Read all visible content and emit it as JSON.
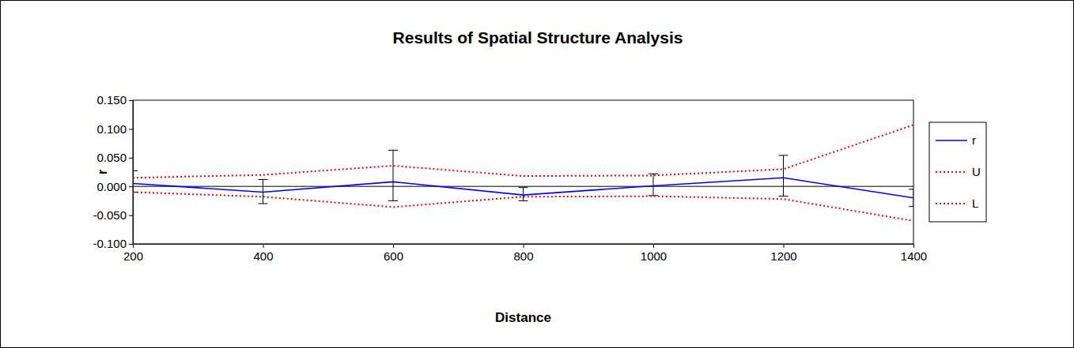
{
  "chart_data": {
    "type": "line",
    "title": "Results of Spatial Structure Analysis",
    "x_label": "Distance",
    "y_label": "r",
    "x": [
      200,
      400,
      600,
      800,
      1000,
      1200,
      1400
    ],
    "xlim": [
      200,
      1400
    ],
    "xticks": [
      200,
      400,
      600,
      800,
      1000,
      1200,
      1400
    ],
    "ylim": [
      -0.1,
      0.15
    ],
    "yticks": [
      {
        "value": -0.1,
        "label": "-0.100"
      },
      {
        "value": -0.05,
        "label": "-0.050"
      },
      {
        "value": 0,
        "label": "0.000"
      },
      {
        "value": 0.05,
        "label": "0.050"
      },
      {
        "value": 0.1,
        "label": "0.100"
      },
      {
        "value": 0.15,
        "label": "0.150"
      }
    ],
    "legend": "right",
    "series": [
      {
        "name": "r",
        "color": "#0000ff",
        "line_style": "solid",
        "values": [
          0.005,
          -0.01,
          0.008,
          -0.015,
          0.001,
          0.015,
          -0.02
        ],
        "error_upper": [
          0.022,
          0.022,
          0.055,
          0.013,
          0.021,
          0.039,
          0.015
        ],
        "error_lower": [
          0.015,
          0.02,
          0.033,
          0.01,
          0.017,
          0.032,
          0.015
        ]
      },
      {
        "name": "U",
        "color": "#ff0000",
        "line_style": "dotted",
        "values": [
          0.015,
          0.02,
          0.036,
          0.018,
          0.019,
          0.03,
          0.107
        ]
      },
      {
        "name": "L",
        "color": "#ff0000",
        "line_style": "dotted",
        "values": [
          -0.01,
          -0.018,
          -0.036,
          -0.018,
          -0.017,
          -0.022,
          -0.06
        ]
      }
    ]
  }
}
